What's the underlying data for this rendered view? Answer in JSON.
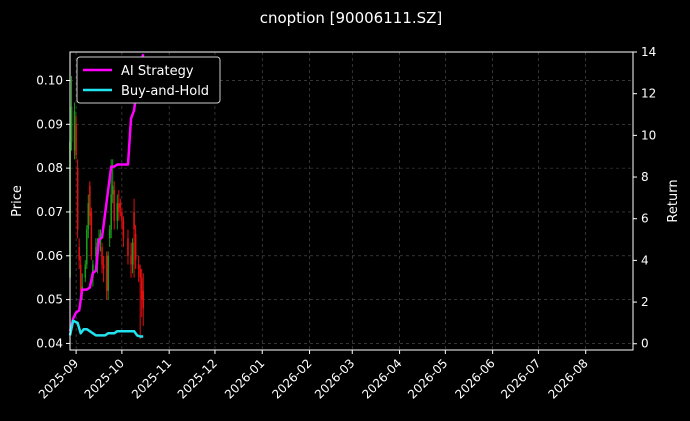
{
  "chart_data": {
    "type": "line",
    "title": "cnoption [90006111.SZ]",
    "xlabel": "",
    "ylabel_left": "Price",
    "ylabel_right": "Return",
    "grid": true,
    "legend_position": "top-left",
    "x_tick_labels": [
      "2025-09",
      "2025-10",
      "2025-11",
      "2025-12",
      "2026-01",
      "2026-02",
      "2026-03",
      "2026-04",
      "2026-05",
      "2026-06",
      "2026-07",
      "2026-08"
    ],
    "price_ylim": [
      0.0385,
      0.1065
    ],
    "price_yticks": [
      0.04,
      0.05,
      0.06,
      0.07,
      0.08,
      0.09,
      0.1
    ],
    "price_ytick_labels": [
      "0.04",
      "0.05",
      "0.06",
      "0.07",
      "0.08",
      "0.09",
      "0.10"
    ],
    "return_ylim": [
      -0.3,
      14
    ],
    "return_yticks": [
      0,
      2,
      4,
      6,
      8,
      10,
      12,
      14
    ],
    "return_ytick_labels": [
      "0",
      "2",
      "4",
      "6",
      "8",
      "10",
      "12",
      "14"
    ],
    "colors": {
      "background": "#000000",
      "grid": "#555555",
      "ai_strategy": "#ff00ff",
      "buy_and_hold": "#22e3ee",
      "candle_up": "#1a9a1a",
      "candle_down": "#e01010"
    },
    "series": [
      {
        "name": "AI Strategy",
        "color": "#ff00ff",
        "axis": "right",
        "dates": [
          "2025-08-28",
          "2025-08-30",
          "2025-09-01",
          "2025-09-03",
          "2025-09-05",
          "2025-09-08",
          "2025-09-10",
          "2025-09-12",
          "2025-09-14",
          "2025-09-16",
          "2025-09-18",
          "2025-09-21",
          "2025-09-24",
          "2025-09-26",
          "2025-09-28",
          "2025-10-01",
          "2025-10-03",
          "2025-10-05",
          "2025-10-07",
          "2025-10-09",
          "2025-10-11",
          "2025-10-13",
          "2025-10-14",
          "2025-10-15"
        ],
        "values": [
          0.6,
          1.2,
          1.5,
          1.6,
          2.6,
          2.6,
          2.7,
          3.4,
          3.5,
          5.0,
          5.1,
          6.8,
          8.5,
          8.5,
          8.6,
          8.6,
          8.6,
          8.6,
          10.8,
          11.2,
          12.4,
          12.8,
          13.6,
          13.9
        ]
      },
      {
        "name": "Buy-and-Hold",
        "color": "#22e3ee",
        "axis": "right",
        "dates": [
          "2025-08-28",
          "2025-08-30",
          "2025-09-02",
          "2025-09-04",
          "2025-09-06",
          "2025-09-08",
          "2025-09-10",
          "2025-09-12",
          "2025-09-14",
          "2025-09-16",
          "2025-09-18",
          "2025-09-20",
          "2025-09-22",
          "2025-09-24",
          "2025-09-26",
          "2025-09-28",
          "2025-10-01",
          "2025-10-03",
          "2025-10-05",
          "2025-10-07",
          "2025-10-09",
          "2025-10-11",
          "2025-10-13",
          "2025-10-15"
        ],
        "values": [
          0.4,
          1.1,
          1.0,
          0.5,
          0.7,
          0.7,
          0.6,
          0.5,
          0.4,
          0.4,
          0.4,
          0.4,
          0.5,
          0.5,
          0.5,
          0.6,
          0.6,
          0.6,
          0.6,
          0.6,
          0.6,
          0.4,
          0.35,
          0.35
        ]
      }
    ],
    "candles": {
      "axis": "left",
      "dates": [
        "2025-08-28",
        "2025-08-29",
        "2025-08-31",
        "2025-09-01",
        "2025-09-02",
        "2025-09-03",
        "2025-09-04",
        "2025-09-05",
        "2025-09-07",
        "2025-09-08",
        "2025-09-09",
        "2025-09-10",
        "2025-09-11",
        "2025-09-12",
        "2025-09-14",
        "2025-09-15",
        "2025-09-16",
        "2025-09-17",
        "2025-09-18",
        "2025-09-19",
        "2025-09-21",
        "2025-09-22",
        "2025-09-23",
        "2025-09-24",
        "2025-09-25",
        "2025-09-26",
        "2025-09-28",
        "2025-09-29",
        "2025-09-30",
        "2025-10-01",
        "2025-10-02",
        "2025-10-05",
        "2025-10-07",
        "2025-10-08",
        "2025-10-09",
        "2025-10-10",
        "2025-10-12",
        "2025-10-13",
        "2025-10-14",
        "2025-10-15"
      ],
      "open": [
        0.055,
        0.086,
        0.084,
        0.09,
        0.08,
        0.062,
        0.058,
        0.052,
        0.055,
        0.058,
        0.066,
        0.076,
        0.07,
        0.055,
        0.06,
        0.058,
        0.064,
        0.063,
        0.062,
        0.058,
        0.06,
        0.052,
        0.064,
        0.066,
        0.074,
        0.075,
        0.068,
        0.072,
        0.072,
        0.07,
        0.068,
        0.064,
        0.06,
        0.058,
        0.07,
        0.065,
        0.058,
        0.057,
        0.055,
        0.052
      ],
      "close": [
        0.086,
        0.094,
        0.093,
        0.083,
        0.066,
        0.059,
        0.052,
        0.053,
        0.058,
        0.066,
        0.072,
        0.069,
        0.06,
        0.058,
        0.062,
        0.063,
        0.064,
        0.065,
        0.058,
        0.057,
        0.052,
        0.06,
        0.066,
        0.074,
        0.076,
        0.068,
        0.072,
        0.07,
        0.071,
        0.068,
        0.064,
        0.06,
        0.058,
        0.063,
        0.066,
        0.059,
        0.057,
        0.055,
        0.05,
        0.048
      ],
      "high": [
        0.088,
        0.101,
        0.095,
        0.092,
        0.082,
        0.064,
        0.06,
        0.056,
        0.059,
        0.067,
        0.074,
        0.077,
        0.071,
        0.059,
        0.064,
        0.064,
        0.066,
        0.066,
        0.063,
        0.06,
        0.061,
        0.061,
        0.067,
        0.082,
        0.082,
        0.077,
        0.074,
        0.075,
        0.073,
        0.071,
        0.069,
        0.066,
        0.063,
        0.064,
        0.073,
        0.067,
        0.06,
        0.058,
        0.057,
        0.056
      ],
      "low": [
        0.054,
        0.084,
        0.082,
        0.082,
        0.064,
        0.057,
        0.05,
        0.05,
        0.054,
        0.057,
        0.064,
        0.067,
        0.059,
        0.053,
        0.058,
        0.056,
        0.062,
        0.061,
        0.056,
        0.054,
        0.05,
        0.05,
        0.062,
        0.064,
        0.072,
        0.066,
        0.066,
        0.068,
        0.069,
        0.066,
        0.062,
        0.058,
        0.055,
        0.056,
        0.055,
        0.057,
        0.054,
        0.041,
        0.046,
        0.044
      ]
    }
  }
}
